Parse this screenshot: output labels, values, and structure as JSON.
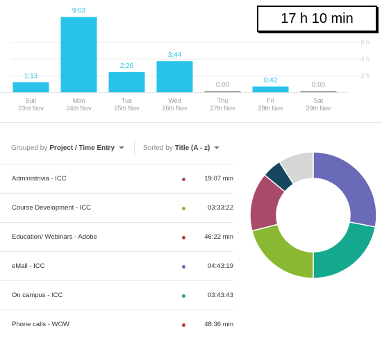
{
  "total": {
    "label": "17 h 10 min"
  },
  "chart_data": {
    "type": "bar",
    "categories": [
      "Sun",
      "Mon",
      "Tue",
      "Wed",
      "Thu",
      "Fri",
      "Sat"
    ],
    "dates": [
      "23rd Nov",
      "24th Nov",
      "25th Nov",
      "26th Nov",
      "27th Nov",
      "28th Nov",
      "29th Nov"
    ],
    "values_minutes": [
      73,
      543,
      146,
      224,
      0,
      42,
      0
    ],
    "value_labels": [
      "1:13",
      "9:03",
      "2:26",
      "3:44",
      "0:00",
      "0:42",
      "0:00"
    ],
    "y_ticks": [
      {
        "value": 120,
        "label": "2 h"
      },
      {
        "value": 240,
        "label": "4 h"
      },
      {
        "value": 360,
        "label": "6 h"
      }
    ],
    "ylim": [
      0,
      540
    ],
    "colors": {
      "bar": "#29c3ea",
      "zero_bar": "#a6a6a6",
      "zero_label": "#aaaaaa"
    }
  },
  "toolbar": {
    "grouped_prefix": "Grouped by",
    "grouped_value": "Project / Time Entry",
    "sorted_prefix": "Sorted by",
    "sorted_value": "Title (A - z)"
  },
  "entries": [
    {
      "name": "Administrivia - ICC",
      "duration": "19:07 min",
      "color": "#a84a68"
    },
    {
      "name": "Course Development - ICC",
      "duration": "03:33:22",
      "color": "#8ab833"
    },
    {
      "name": "Education/ Webinars - Adobe",
      "duration": "46:22 min",
      "color": "#b33a3a"
    },
    {
      "name": "eMail - ICC",
      "duration": "04:43:19",
      "color": "#6a6ab8"
    },
    {
      "name": "On campus - ICC",
      "duration": "03:43:43",
      "color": "#14a88f"
    },
    {
      "name": "Phone calls - WOW",
      "duration": "48:36 min",
      "color": "#b33a3a"
    }
  ],
  "donut_data": {
    "type": "pie",
    "slices": [
      {
        "share": 0.28,
        "color": "#6a6ab8"
      },
      {
        "share": 0.22,
        "color": "#14a88f"
      },
      {
        "share": 0.21,
        "color": "#8ab833"
      },
      {
        "share": 0.15,
        "color": "#a84a68"
      },
      {
        "share": 0.05,
        "color": "#17475e"
      },
      {
        "share": 0.09,
        "color": "#d6d6d6"
      }
    ]
  }
}
